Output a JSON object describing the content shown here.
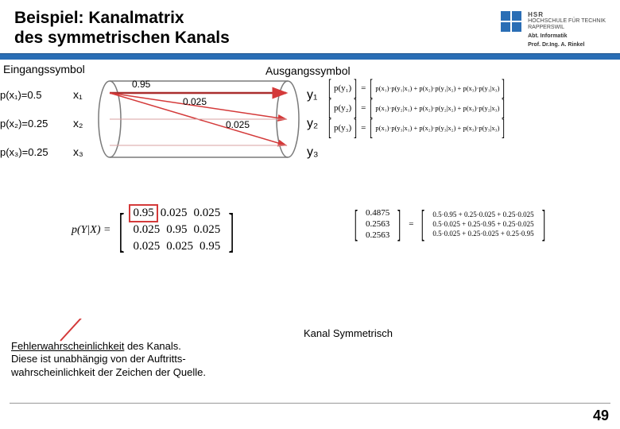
{
  "header": {
    "title_line1": "Beispiel: Kanalmatrix",
    "title_line2": "des symmetrischen Kanals",
    "logo": {
      "line1": "HSR",
      "line2": "HOCHSCHULE FÜR TECHNIK",
      "line3": "RAPPERSWIL",
      "sub1": "Abt. Informatik",
      "sub2": "Prof. Dr.Ing. A. Rinkel",
      "square_color": "#2a6eb5"
    },
    "divider_color": "#2a6eb5"
  },
  "labels": {
    "eingang": "Eingangssymbol",
    "ausgang": "Ausgangssymbol"
  },
  "inputs": {
    "rows": [
      {
        "p": "p(x₁)=0.5",
        "x": "x₁"
      },
      {
        "p": "p(x₂)=0.25",
        "x": "x₂"
      },
      {
        "p": "p(x₃)=0.25",
        "x": "x₃"
      }
    ]
  },
  "outputs": {
    "rows": [
      {
        "y": "y₁"
      },
      {
        "y": "y₂"
      },
      {
        "y": "y₃"
      }
    ]
  },
  "diagram": {
    "edge_labels": {
      "main": "0.95",
      "off1": "0.025",
      "off2": "0.025"
    },
    "colors": {
      "cylinder_stroke": "#7a7a7a",
      "main_edge": "#d43a3a",
      "main_edge_dark": "#aa2e2e",
      "off_edge": "#d43a3a"
    }
  },
  "formulas": {
    "p_y1": "p(y₁)",
    "p_y2": "p(y₂)",
    "p_y3": "p(y₃)",
    "eq": "=",
    "exp1": "p(x₁)·p(y₁|x₁) + p(x₂)·p(y₁|x₂) + p(x₃)·p(y₁|x₃)",
    "exp2": "p(x₁)·p(y₂|x₁) + p(x₂)·p(y₂|x₂) + p(x₃)·p(y₂|x₃)",
    "exp3": "p(x₁)·p(y₃|x₁) + p(x₂)·p(y₃|x₂) + p(x₃)·p(y₃|x₃)"
  },
  "matrix": {
    "lhs": "p(Y|X) =",
    "rows": [
      [
        "0.95",
        "0.025",
        "0.025"
      ],
      [
        "0.025",
        "0.95",
        "0.025"
      ],
      [
        "0.025",
        "0.025",
        "0.95"
      ]
    ],
    "highlight": {
      "row": 0,
      "col": 0
    },
    "highlight_color": "#d43a3a",
    "cell_fontsize": 15
  },
  "calc": {
    "vec_in": [
      "0.4875",
      "0.2563",
      "0.2563"
    ],
    "eq": "=",
    "vec_expr": [
      "0.5·0.95 + 0.25·0.025 + 0.25·0.025",
      "0.5·0.025 + 0.25·0.95 + 0.25·0.025",
      "0.5·0.025 + 0.25·0.025 + 0.25·0.95"
    ]
  },
  "footnote": {
    "line1": "Fehlerwahrscheinlichkeit des Kanals.",
    "line1_u_end": 23,
    "line2": "Diese ist unabhängig von der Auftritts-",
    "line3": "wahrscheinlichkeit der Zeichen der Quelle."
  },
  "kanal_sym": "Kanal Symmetrisch",
  "page_number": "49",
  "arrow_color": "#d43a3a"
}
